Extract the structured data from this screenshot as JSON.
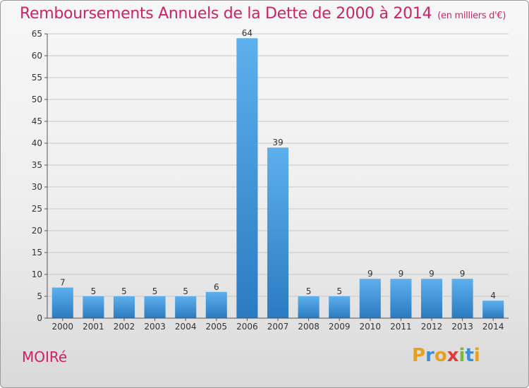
{
  "title": "Remboursements Annuels de la Dette de 2000 à 2014",
  "unit": "(en milliers d'€)",
  "commune": "MOIRé",
  "logo": {
    "letters": [
      "P",
      "r",
      "o",
      "x",
      "i",
      "t",
      "i"
    ],
    "colors": [
      "#e8a020",
      "#3a8fd6",
      "#e8a020",
      "#e23a3a",
      "#7ab83a",
      "#3a8fd6",
      "#e8a020"
    ]
  },
  "colors": {
    "bar_top": "#5db0ec",
    "bar_bottom": "#2a7bc1",
    "title": "#cc2266",
    "grid": "#c8c8c8"
  },
  "chart_data": {
    "type": "bar",
    "title": "Remboursements Annuels de la Dette de 2000 à 2014",
    "xlabel": "",
    "ylabel": "",
    "categories": [
      "2000",
      "2001",
      "2002",
      "2003",
      "2004",
      "2005",
      "2006",
      "2007",
      "2008",
      "2009",
      "2010",
      "2011",
      "2012",
      "2013",
      "2014"
    ],
    "values": [
      7,
      5,
      5,
      5,
      5,
      6,
      64,
      39,
      5,
      5,
      9,
      9,
      9,
      9,
      4
    ],
    "ylim": [
      0,
      65
    ],
    "yticks": [
      0,
      5,
      10,
      15,
      20,
      25,
      30,
      35,
      40,
      45,
      50,
      55,
      60,
      65
    ],
    "grid": true,
    "data_labels": true
  }
}
